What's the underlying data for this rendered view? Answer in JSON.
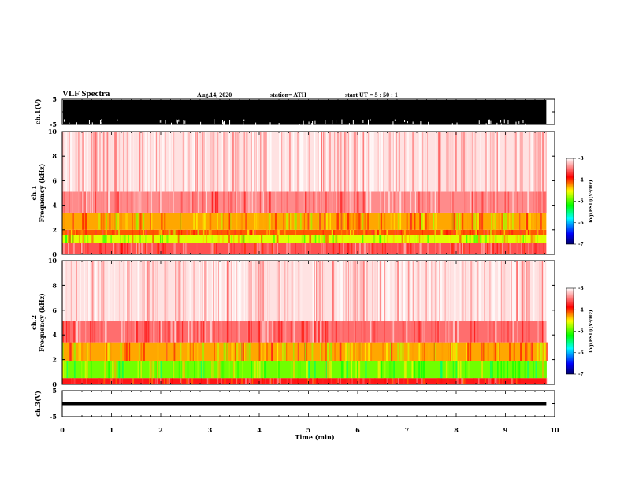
{
  "header": {
    "title": "VLF Spectra",
    "date": "Aug.14, 2020",
    "station": "station= ATH",
    "start": "start  UT =  5 : 50 : 1"
  },
  "chart_data": [
    {
      "type": "line",
      "panel": "ch1-waveform",
      "ylabel": "ch.1(V)",
      "ylim": [
        -5,
        5
      ],
      "yticks": [
        "5",
        "-5"
      ],
      "xlim": [
        0,
        10
      ],
      "note_color": "#000000"
    },
    {
      "type": "heatmap",
      "panel": "ch1-spectrogram",
      "ylabel": "ch.1\nFrequency (kHz)",
      "ylim": [
        0,
        10
      ],
      "yticks": [
        "0",
        "2",
        "4",
        "6",
        "8",
        "10"
      ],
      "xlim": [
        0,
        10
      ],
      "x_data_extent": [
        0,
        9.83
      ],
      "bands_khz": [
        {
          "from": 0.0,
          "to": 0.9,
          "level": -3.6
        },
        {
          "from": 0.9,
          "to": 1.6,
          "level": -4.6
        },
        {
          "from": 1.6,
          "to": 2.0,
          "level": -4.1
        },
        {
          "from": 2.0,
          "to": 3.4,
          "level": -4.3
        },
        {
          "from": 3.4,
          "to": 5.1,
          "level": -3.4
        },
        {
          "from": 5.1,
          "to": 10.0,
          "level": -3.1
        }
      ],
      "colorbar": {
        "label": "log(PSD)(V²/Hz)",
        "ticks": [
          "-3",
          "-4",
          "-5",
          "-6",
          "-7"
        ],
        "range": [
          -7,
          -3
        ]
      }
    },
    {
      "type": "heatmap",
      "panel": "ch2-spectrogram",
      "ylabel": "ch.2\nFrequency (kHz)",
      "ylim": [
        0,
        10
      ],
      "yticks": [
        "0",
        "2",
        "4",
        "6",
        "8",
        "10"
      ],
      "xlim": [
        0,
        10
      ],
      "x_data_extent": [
        0,
        9.83
      ],
      "bands_khz": [
        {
          "from": 0.0,
          "to": 0.5,
          "level": -3.8
        },
        {
          "from": 0.5,
          "to": 1.9,
          "level": -4.9
        },
        {
          "from": 1.9,
          "to": 3.4,
          "level": -4.3
        },
        {
          "from": 3.4,
          "to": 5.1,
          "level": -3.5
        },
        {
          "from": 5.1,
          "to": 10.0,
          "level": -3.1
        }
      ],
      "colorbar": {
        "label": "log(PSD)(V²/Hz)",
        "ticks": [
          "-3",
          "-4",
          "-5",
          "-6",
          "-7"
        ],
        "range": [
          -7,
          -3
        ]
      }
    },
    {
      "type": "line",
      "panel": "ch3-waveform",
      "ylabel": "ch.3(V)",
      "ylim": [
        -5,
        5
      ],
      "yticks": [
        "5",
        "-5"
      ],
      "xlim": [
        0,
        10
      ],
      "level_v": 0,
      "xticks": [
        "0",
        "1",
        "2",
        "3",
        "4",
        "5",
        "6",
        "7",
        "8",
        "9",
        "10"
      ],
      "xlabel": "Time (min)"
    }
  ]
}
